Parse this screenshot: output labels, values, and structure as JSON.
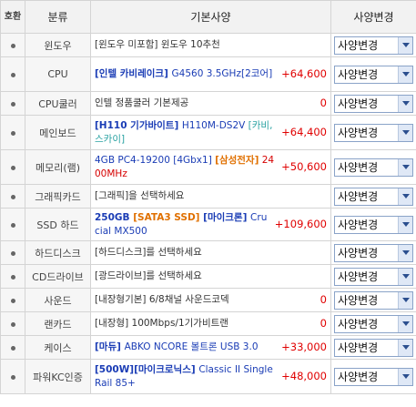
{
  "header": {
    "no": "호환",
    "category": "분류",
    "spec": "기본사양",
    "change": "사양변경"
  },
  "select_label": "사양변경",
  "rows": [
    {
      "category": "윈도우",
      "parts": [
        [
          "t",
          "[윈도우 미포함] 윈도우 10추천"
        ]
      ],
      "price": ""
    },
    {
      "category": "CPU",
      "parts": [
        [
          "b",
          "[인텔 카비레이크] "
        ],
        [
          "n",
          "G4560 3.5GHz[2코어]"
        ]
      ],
      "price": "+64,600"
    },
    {
      "category": "CPU쿨러",
      "parts": [
        [
          "t",
          "인텔 정품쿨러 기본제공"
        ]
      ],
      "price": "0"
    },
    {
      "category": "메인보드",
      "parts": [
        [
          "b",
          "[H110 기가바이트] "
        ],
        [
          "n",
          "H110M-DS2V "
        ],
        [
          "g",
          "[카비,스카이]"
        ]
      ],
      "price": "+64,400"
    },
    {
      "category": "메모리(램)",
      "parts": [
        [
          "n",
          "4GB PC4-19200 [4Gbx1] "
        ],
        [
          "o",
          "[삼성전자]"
        ],
        [
          "r",
          " 2400MHz"
        ]
      ],
      "price": "+50,600"
    },
    {
      "category": "그래픽카드",
      "parts": [
        [
          "t",
          "[그래픽]을 선택하세요"
        ]
      ],
      "price": ""
    },
    {
      "category": "SSD 하드",
      "parts": [
        [
          "b",
          "250GB "
        ],
        [
          "o",
          "[SATA3 SSD]"
        ],
        [
          "b",
          " [마이크론] "
        ],
        [
          "n",
          "Crucial MX500"
        ]
      ],
      "price": "+109,600"
    },
    {
      "category": "하드디스크",
      "parts": [
        [
          "t",
          "[하드디스크]를 선택하세요"
        ]
      ],
      "price": ""
    },
    {
      "category": "CD드라이브",
      "parts": [
        [
          "t",
          "[광드라이브]를 선택하세요"
        ]
      ],
      "price": ""
    },
    {
      "category": "사운드",
      "parts": [
        [
          "t",
          "[내장형기본] 6/8채널 사운드코덱"
        ]
      ],
      "price": "0"
    },
    {
      "category": "랜카드",
      "parts": [
        [
          "t",
          "[내장형] 100Mbps/1기가비트랜"
        ]
      ],
      "price": "0"
    },
    {
      "category": "케이스",
      "parts": [
        [
          "b",
          "[마듀] "
        ],
        [
          "n",
          "ABKO NCORE 볼트론 USB 3.0"
        ]
      ],
      "price": "+33,000"
    },
    {
      "category": "파워KC인증",
      "parts": [
        [
          "b",
          "[500W][마이크로닉스] "
        ],
        [
          "n",
          "Classic II Single Rail 85+"
        ]
      ],
      "price": "+48,000"
    }
  ]
}
